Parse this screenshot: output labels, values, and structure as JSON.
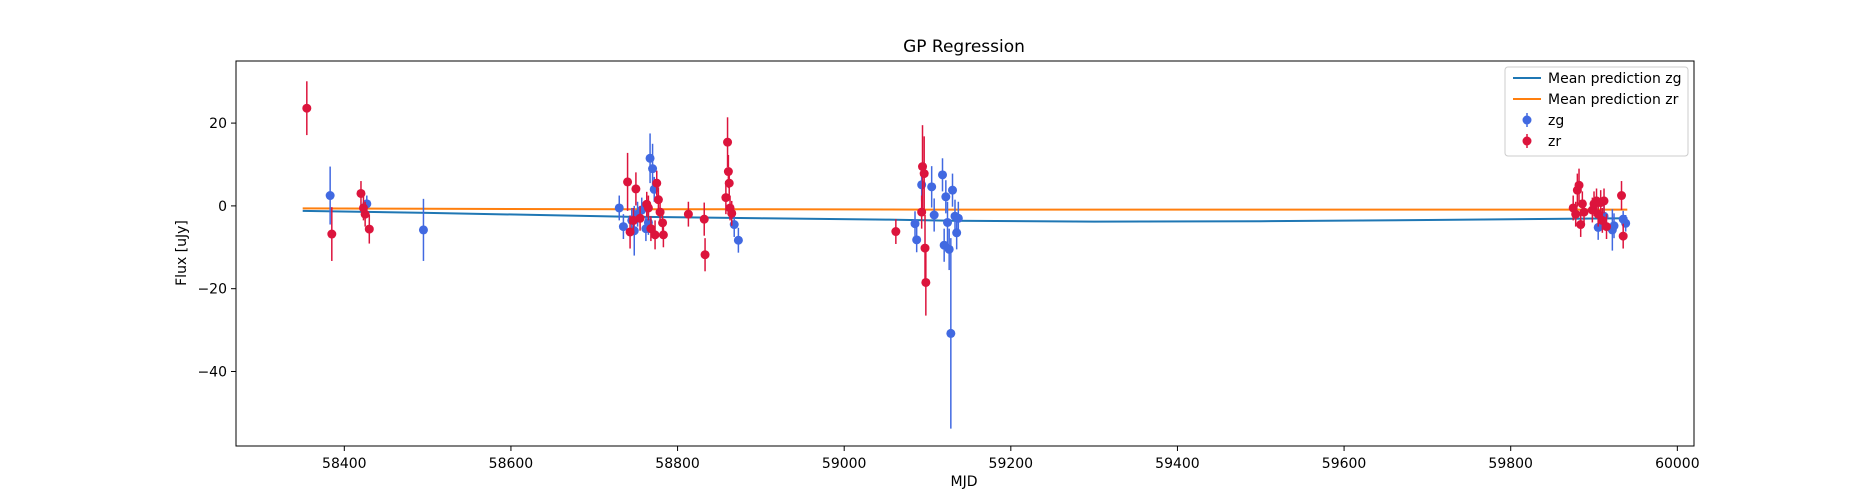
{
  "chart_data": {
    "type": "scatter",
    "title": "GP Regression",
    "xlabel": "MJD",
    "ylabel": "Flux [uJy]",
    "xlim": [
      58270,
      60020
    ],
    "ylim": [
      -58,
      35
    ],
    "xticks": [
      58400,
      58600,
      58800,
      59000,
      59200,
      59400,
      59600,
      59800,
      60000
    ],
    "yticks": [
      -40,
      -20,
      0,
      20
    ],
    "ytick_labels": [
      "−40",
      "−20",
      "0",
      "20"
    ],
    "grid": false,
    "legend_position": "top-right",
    "lines": [
      {
        "name": "Mean prediction zg",
        "color": "#1f77b4",
        "x": [
          58350,
          58500,
          58740,
          58900,
          59050,
          59130,
          59300,
          59500,
          59700,
          59870,
          59940
        ],
        "y": [
          -1.2,
          -1.7,
          -2.6,
          -3.0,
          -3.3,
          -3.6,
          -3.8,
          -3.7,
          -3.4,
          -3.1,
          -3.0
        ]
      },
      {
        "name": "Mean prediction zr",
        "color": "#ff7f0e",
        "x": [
          58350,
          58500,
          58740,
          58900,
          59100,
          59300,
          59500,
          59700,
          59940
        ],
        "y": [
          -0.6,
          -0.7,
          -0.8,
          -0.8,
          -0.9,
          -0.9,
          -0.9,
          -0.9,
          -0.9
        ]
      }
    ],
    "series": [
      {
        "name": "zg",
        "color": "#4169e1",
        "points": [
          {
            "x": 58383,
            "y": 2.5,
            "err": 7
          },
          {
            "x": 58427,
            "y": 0.5,
            "err": 2
          },
          {
            "x": 58495,
            "y": -5.8,
            "err": 7.5
          },
          {
            "x": 58730,
            "y": -0.5,
            "err": 3
          },
          {
            "x": 58735,
            "y": -5,
            "err": 3
          },
          {
            "x": 58745,
            "y": -3.5,
            "err": 3
          },
          {
            "x": 58748,
            "y": -6,
            "err": 6
          },
          {
            "x": 58752,
            "y": -2,
            "err": 3
          },
          {
            "x": 58757,
            "y": -1,
            "err": 3
          },
          {
            "x": 58762,
            "y": -5.5,
            "err": 3
          },
          {
            "x": 58765,
            "y": -4,
            "err": 3
          },
          {
            "x": 58767,
            "y": 11.5,
            "err": 6
          },
          {
            "x": 58770,
            "y": 9,
            "err": 6
          },
          {
            "x": 58772,
            "y": 4,
            "err": 3
          },
          {
            "x": 58868,
            "y": -4.5,
            "err": 3
          },
          {
            "x": 58873,
            "y": -8.3,
            "err": 3
          },
          {
            "x": 59085,
            "y": -4.3,
            "err": 3
          },
          {
            "x": 59087,
            "y": -8.2,
            "err": 3
          },
          {
            "x": 59093,
            "y": 5.1,
            "err": 4
          },
          {
            "x": 59105,
            "y": 4.6,
            "err": 5
          },
          {
            "x": 59108,
            "y": -2.2,
            "err": 4
          },
          {
            "x": 59118,
            "y": 7.5,
            "err": 4
          },
          {
            "x": 59120,
            "y": -9.5,
            "err": 4
          },
          {
            "x": 59122,
            "y": 2.2,
            "err": 4
          },
          {
            "x": 59124,
            "y": -4,
            "err": 5
          },
          {
            "x": 59126,
            "y": -10.5,
            "err": 5
          },
          {
            "x": 59128,
            "y": -30.8,
            "err": 23
          },
          {
            "x": 59130,
            "y": 3.8,
            "err": 4
          },
          {
            "x": 59133,
            "y": -2.5,
            "err": 4
          },
          {
            "x": 59135,
            "y": -6.5,
            "err": 4
          },
          {
            "x": 59137,
            "y": -3,
            "err": 4
          },
          {
            "x": 59905,
            "y": -5.2,
            "err": 3
          },
          {
            "x": 59912,
            "y": -2.5,
            "err": 3
          },
          {
            "x": 59922,
            "y": -5.8,
            "err": 5
          },
          {
            "x": 59924,
            "y": -4.8,
            "err": 3
          },
          {
            "x": 59935,
            "y": -3.2,
            "err": 2
          },
          {
            "x": 59938,
            "y": -4.2,
            "err": 2
          }
        ]
      },
      {
        "name": "zr",
        "color": "#dc143c",
        "points": [
          {
            "x": 58355,
            "y": 23.6,
            "err": 6.5
          },
          {
            "x": 58385,
            "y": -6.8,
            "err": 6.5
          },
          {
            "x": 58420,
            "y": 3,
            "err": 3
          },
          {
            "x": 58423,
            "y": -0.5,
            "err": 3
          },
          {
            "x": 58425,
            "y": -2,
            "err": 3
          },
          {
            "x": 58430,
            "y": -5.6,
            "err": 3.5
          },
          {
            "x": 58740,
            "y": 5.8,
            "err": 7
          },
          {
            "x": 58743,
            "y": -6.3,
            "err": 4
          },
          {
            "x": 58747,
            "y": -3.5,
            "err": 3
          },
          {
            "x": 58750,
            "y": 4.1,
            "err": 4
          },
          {
            "x": 58755,
            "y": -3,
            "err": 3
          },
          {
            "x": 58763,
            "y": 0.4,
            "err": 3
          },
          {
            "x": 58765,
            "y": -0.5,
            "err": 3
          },
          {
            "x": 58768,
            "y": -5.5,
            "err": 3
          },
          {
            "x": 58773,
            "y": -7,
            "err": 3.5
          },
          {
            "x": 58775,
            "y": 5.5,
            "err": 3
          },
          {
            "x": 58777,
            "y": 1.5,
            "err": 3
          },
          {
            "x": 58779,
            "y": -1.5,
            "err": 3
          },
          {
            "x": 58782,
            "y": -4.1,
            "err": 3
          },
          {
            "x": 58783,
            "y": -7,
            "err": 3
          },
          {
            "x": 58813,
            "y": -2,
            "err": 3
          },
          {
            "x": 58832,
            "y": -3.2,
            "err": 4
          },
          {
            "x": 58833,
            "y": -11.8,
            "err": 4
          },
          {
            "x": 58858,
            "y": 2,
            "err": 4
          },
          {
            "x": 58860,
            "y": 15.4,
            "err": 6
          },
          {
            "x": 58861,
            "y": 8.3,
            "err": 4
          },
          {
            "x": 58862,
            "y": 5.5,
            "err": 3
          },
          {
            "x": 58863,
            "y": -0.5,
            "err": 3
          },
          {
            "x": 58865,
            "y": -1.8,
            "err": 3
          },
          {
            "x": 59062,
            "y": -6.2,
            "err": 3
          },
          {
            "x": 59093,
            "y": -1.5,
            "err": 4
          },
          {
            "x": 59094,
            "y": 9.5,
            "err": 10
          },
          {
            "x": 59096,
            "y": 7.8,
            "err": 9
          },
          {
            "x": 59097,
            "y": -10.2,
            "err": 8
          },
          {
            "x": 59098,
            "y": -18.5,
            "err": 8
          },
          {
            "x": 59875,
            "y": -0.5,
            "err": 3
          },
          {
            "x": 59878,
            "y": -2,
            "err": 3
          },
          {
            "x": 59880,
            "y": 3.8,
            "err": 4
          },
          {
            "x": 59882,
            "y": 5,
            "err": 4
          },
          {
            "x": 59884,
            "y": -4.5,
            "err": 3
          },
          {
            "x": 59886,
            "y": 0.5,
            "err": 3
          },
          {
            "x": 59888,
            "y": -1.5,
            "err": 3
          },
          {
            "x": 59898,
            "y": -1,
            "err": 3
          },
          {
            "x": 59900,
            "y": 0.5,
            "err": 3
          },
          {
            "x": 59903,
            "y": 1.2,
            "err": 3
          },
          {
            "x": 59905,
            "y": -2,
            "err": 3
          },
          {
            "x": 59908,
            "y": 0.8,
            "err": 3
          },
          {
            "x": 59910,
            "y": -3.5,
            "err": 3
          },
          {
            "x": 59912,
            "y": 1.2,
            "err": 3
          },
          {
            "x": 59915,
            "y": -5,
            "err": 3
          },
          {
            "x": 59933,
            "y": 2.5,
            "err": 3.5
          },
          {
            "x": 59935,
            "y": -7.3,
            "err": 3
          }
        ]
      }
    ]
  }
}
